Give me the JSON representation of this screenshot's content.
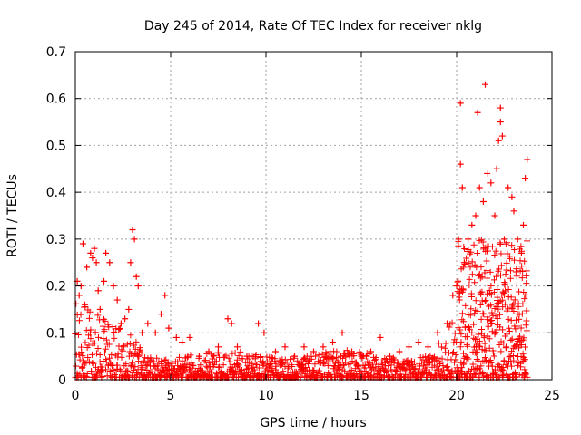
{
  "chart_data": {
    "type": "scatter",
    "title": "Day 245 of 2014, Rate Of TEC Index for receiver nklg",
    "xlabel": "GPS time / hours",
    "ylabel": "ROTI / TECUs",
    "xlim": [
      0,
      25
    ],
    "ylim": [
      0,
      0.7
    ],
    "xticks": [
      0,
      5,
      10,
      15,
      20,
      25
    ],
    "yticks": [
      0,
      0.1,
      0.2,
      0.3,
      0.4,
      0.5,
      0.6,
      0.7
    ],
    "xtick_labels": [
      "0",
      "5",
      "10",
      "15",
      "20",
      "25"
    ],
    "ytick_labels": [
      "0",
      "0.1",
      "0.2",
      "0.3",
      "0.4",
      "0.5",
      "0.6",
      "0.7"
    ],
    "grid": true,
    "marker": "+",
    "color": "#ff0000",
    "series": [
      {
        "name": "ROTI",
        "points": [
          [
            0.1,
            0.21
          ],
          [
            0.2,
            0.18
          ],
          [
            0.3,
            0.2
          ],
          [
            0.4,
            0.29
          ],
          [
            0.5,
            0.16
          ],
          [
            0.6,
            0.24
          ],
          [
            0.8,
            0.27
          ],
          [
            0.9,
            0.26
          ],
          [
            1.0,
            0.28
          ],
          [
            1.1,
            0.25
          ],
          [
            1.2,
            0.19
          ],
          [
            1.3,
            0.15
          ],
          [
            1.5,
            0.21
          ],
          [
            1.6,
            0.27
          ],
          [
            1.8,
            0.25
          ],
          [
            2.0,
            0.2
          ],
          [
            2.2,
            0.17
          ],
          [
            2.4,
            0.12
          ],
          [
            2.6,
            0.13
          ],
          [
            2.8,
            0.15
          ],
          [
            2.9,
            0.25
          ],
          [
            3.0,
            0.32
          ],
          [
            3.1,
            0.3
          ],
          [
            3.2,
            0.22
          ],
          [
            3.3,
            0.2
          ],
          [
            3.5,
            0.1
          ],
          [
            3.8,
            0.12
          ],
          [
            4.2,
            0.1
          ],
          [
            4.5,
            0.14
          ],
          [
            4.7,
            0.18
          ],
          [
            4.9,
            0.11
          ],
          [
            5.3,
            0.09
          ],
          [
            5.6,
            0.08
          ],
          [
            6.0,
            0.09
          ],
          [
            6.5,
            0.05
          ],
          [
            7.0,
            0.06
          ],
          [
            7.5,
            0.07
          ],
          [
            8.0,
            0.13
          ],
          [
            8.2,
            0.12
          ],
          [
            8.5,
            0.07
          ],
          [
            9.0,
            0.05
          ],
          [
            9.6,
            0.12
          ],
          [
            9.9,
            0.1
          ],
          [
            10.5,
            0.06
          ],
          [
            11.0,
            0.07
          ],
          [
            11.5,
            0.05
          ],
          [
            12.0,
            0.07
          ],
          [
            12.5,
            0.06
          ],
          [
            13.0,
            0.07
          ],
          [
            13.5,
            0.08
          ],
          [
            14.0,
            0.1
          ],
          [
            14.5,
            0.06
          ],
          [
            15.0,
            0.05
          ],
          [
            15.5,
            0.06
          ],
          [
            16.0,
            0.09
          ],
          [
            16.5,
            0.05
          ],
          [
            17.0,
            0.06
          ],
          [
            17.5,
            0.07
          ],
          [
            18.0,
            0.08
          ],
          [
            18.5,
            0.07
          ],
          [
            19.0,
            0.1
          ],
          [
            19.5,
            0.12
          ],
          [
            19.8,
            0.18
          ],
          [
            20.0,
            0.2
          ],
          [
            20.1,
            0.3
          ],
          [
            20.2,
            0.46
          ],
          [
            20.2,
            0.59
          ],
          [
            20.3,
            0.41
          ],
          [
            20.4,
            0.25
          ],
          [
            20.6,
            0.3
          ],
          [
            20.8,
            0.33
          ],
          [
            21.0,
            0.35
          ],
          [
            21.1,
            0.57
          ],
          [
            21.2,
            0.41
          ],
          [
            21.4,
            0.38
          ],
          [
            21.5,
            0.63
          ],
          [
            21.6,
            0.44
          ],
          [
            21.8,
            0.42
          ],
          [
            22.0,
            0.35
          ],
          [
            22.1,
            0.45
          ],
          [
            22.2,
            0.51
          ],
          [
            22.3,
            0.55
          ],
          [
            22.3,
            0.58
          ],
          [
            22.4,
            0.52
          ],
          [
            22.5,
            0.3
          ],
          [
            22.7,
            0.41
          ],
          [
            22.9,
            0.39
          ],
          [
            23.0,
            0.36
          ],
          [
            23.2,
            0.3
          ],
          [
            23.4,
            0.27
          ],
          [
            23.5,
            0.33
          ],
          [
            23.6,
            0.43
          ],
          [
            23.7,
            0.47
          ]
        ]
      }
    ]
  }
}
